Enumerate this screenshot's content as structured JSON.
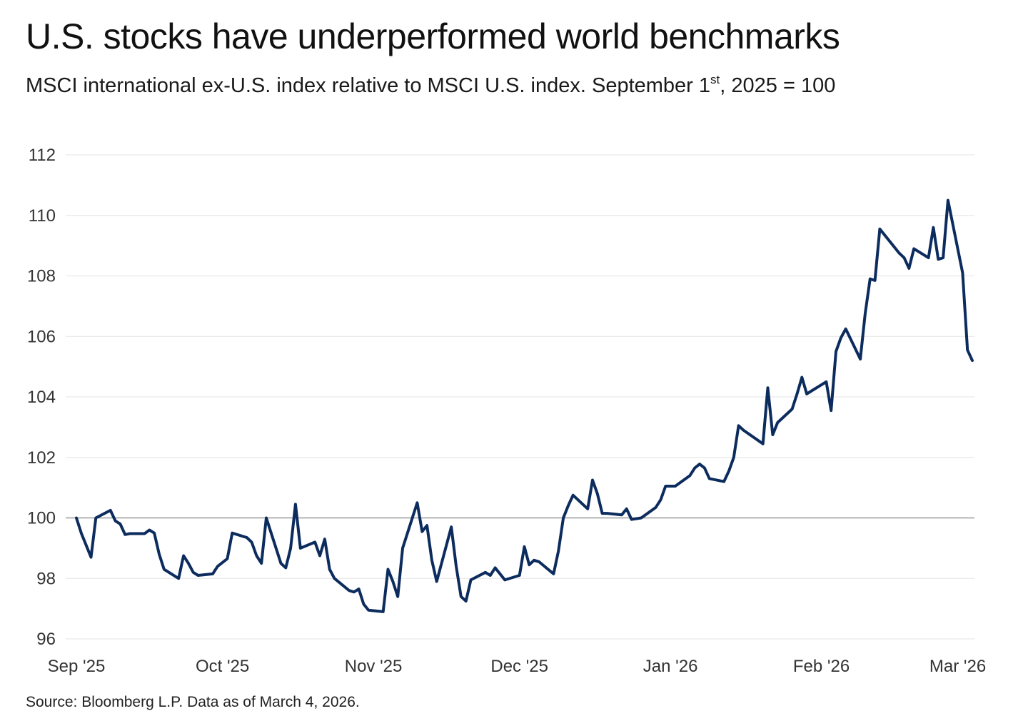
{
  "title": "U.S. stocks have underperformed world benchmarks",
  "subtitle": {
    "before": "MSCI international ex-U.S. index relative to MSCI U.S. index. September 1",
    "sup": "st",
    "after": ", 2025 = 100"
  },
  "source": "Source: Bloomberg L.P. Data as of March 4, 2026.",
  "colors": {
    "line": "#0d2c5e",
    "grid": "#e3e3e3",
    "baseline": "#9a9a9a"
  },
  "chart_data": {
    "type": "line",
    "title": "U.S. stocks have underperformed world benchmarks",
    "xlabel": "",
    "ylabel": "",
    "ylim": [
      96,
      112
    ],
    "yticks": [
      112,
      110,
      108,
      106,
      104,
      102,
      100,
      98,
      96
    ],
    "xlim": [
      "2025-09-01",
      "2026-03-04"
    ],
    "xticks": [
      {
        "date": "2025-09-01",
        "label": "Sep '25"
      },
      {
        "date": "2025-10-01",
        "label": "Oct '25"
      },
      {
        "date": "2025-11-01",
        "label": "Nov '25"
      },
      {
        "date": "2025-12-01",
        "label": "Dec '25"
      },
      {
        "date": "2026-01-01",
        "label": "Jan '26"
      },
      {
        "date": "2026-02-01",
        "label": "Feb '26"
      },
      {
        "date": "2026-03-01",
        "label": "Mar '26"
      }
    ],
    "baseline": 100,
    "grid": true,
    "series": [
      {
        "x": [
          "2025-09-01",
          "2025-09-02",
          "2025-09-04",
          "2025-09-05",
          "2025-09-08",
          "2025-09-09",
          "2025-09-10",
          "2025-09-11",
          "2025-09-12",
          "2025-09-15",
          "2025-09-16",
          "2025-09-17",
          "2025-09-18",
          "2025-09-19",
          "2025-09-22",
          "2025-09-23",
          "2025-09-24",
          "2025-09-25",
          "2025-09-26",
          "2025-09-29",
          "2025-09-30",
          "2025-10-02",
          "2025-10-03",
          "2025-10-06",
          "2025-10-07",
          "2025-10-08",
          "2025-10-09",
          "2025-10-10",
          "2025-10-13",
          "2025-10-14",
          "2025-10-15",
          "2025-10-16",
          "2025-10-17",
          "2025-10-20",
          "2025-10-21",
          "2025-10-22",
          "2025-10-23",
          "2025-10-24",
          "2025-10-27",
          "2025-10-28",
          "2025-10-29",
          "2025-10-30",
          "2025-10-31",
          "2025-11-03",
          "2025-11-04",
          "2025-11-05",
          "2025-11-06",
          "2025-11-07",
          "2025-11-10",
          "2025-11-11",
          "2025-11-12",
          "2025-11-13",
          "2025-11-14",
          "2025-11-17",
          "2025-11-18",
          "2025-11-19",
          "2025-11-20",
          "2025-11-21",
          "2025-11-24",
          "2025-11-25",
          "2025-11-26",
          "2025-11-28",
          "2025-12-01",
          "2025-12-02",
          "2025-12-03",
          "2025-12-04",
          "2025-12-05",
          "2025-12-08",
          "2025-12-09",
          "2025-12-10",
          "2025-12-11",
          "2025-12-12",
          "2025-12-15",
          "2025-12-16",
          "2025-12-17",
          "2025-12-18",
          "2025-12-19",
          "2025-12-22",
          "2025-12-23",
          "2025-12-24",
          "2025-12-26",
          "2025-12-29",
          "2025-12-30",
          "2025-12-31",
          "2026-01-02",
          "2026-01-05",
          "2026-01-06",
          "2026-01-07",
          "2026-01-08",
          "2026-01-09",
          "2026-01-12",
          "2026-01-13",
          "2026-01-14",
          "2026-01-15",
          "2026-01-16",
          "2026-01-20",
          "2026-01-21",
          "2026-01-22",
          "2026-01-23",
          "2026-01-26",
          "2026-01-27",
          "2026-01-28",
          "2026-01-29",
          "2026-01-30",
          "2026-02-02",
          "2026-02-03",
          "2026-02-04",
          "2026-02-05",
          "2026-02-06",
          "2026-02-09",
          "2026-02-10",
          "2026-02-11",
          "2026-02-12",
          "2026-02-13",
          "2026-02-17",
          "2026-02-18",
          "2026-02-19",
          "2026-02-20",
          "2026-02-23",
          "2026-02-24",
          "2026-02-25",
          "2026-02-26",
          "2026-02-27",
          "2026-03-02",
          "2026-03-03",
          "2026-03-04"
        ],
        "y": [
          100.0,
          99.5,
          98.7,
          100.0,
          100.25,
          99.9,
          99.8,
          99.45,
          99.48,
          99.48,
          99.6,
          99.5,
          98.8,
          98.3,
          98.0,
          98.75,
          98.5,
          98.2,
          98.1,
          98.15,
          98.4,
          98.65,
          99.5,
          99.35,
          99.2,
          98.75,
          98.5,
          100.0,
          98.5,
          98.35,
          99.0,
          100.45,
          99.0,
          99.2,
          98.75,
          99.3,
          98.3,
          98.0,
          97.6,
          97.55,
          97.65,
          97.15,
          96.95,
          96.9,
          98.3,
          97.9,
          97.4,
          99.0,
          100.5,
          99.55,
          99.75,
          98.6,
          97.9,
          99.7,
          98.4,
          97.4,
          97.25,
          97.95,
          98.2,
          98.1,
          98.35,
          97.95,
          98.1,
          99.05,
          98.45,
          98.6,
          98.55,
          98.15,
          98.9,
          100.0,
          100.4,
          100.75,
          100.3,
          101.25,
          100.8,
          100.15,
          100.15,
          100.1,
          100.3,
          99.95,
          100.0,
          100.35,
          100.6,
          101.05,
          101.05,
          101.4,
          101.65,
          101.78,
          101.65,
          101.3,
          101.2,
          101.55,
          102.0,
          103.05,
          102.9,
          102.45,
          104.3,
          102.75,
          103.15,
          103.6,
          104.1,
          104.65,
          104.1,
          104.2,
          104.5,
          103.55,
          105.5,
          105.95,
          106.25,
          105.25,
          106.75,
          107.9,
          107.85,
          109.55,
          108.75,
          108.6,
          108.25,
          108.9,
          108.6,
          109.6,
          108.55,
          108.6,
          110.5,
          108.1,
          105.55,
          105.2
        ]
      }
    ]
  }
}
